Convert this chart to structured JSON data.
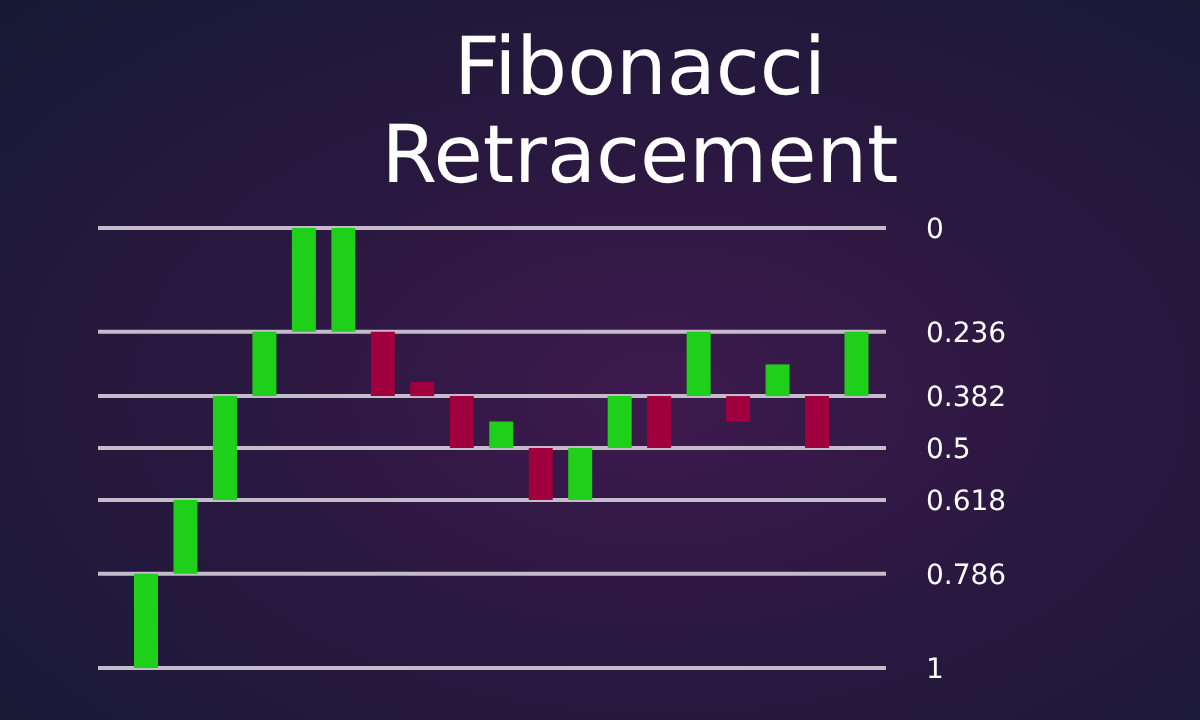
{
  "chart_data": {
    "type": "bar",
    "title": "Fibonacci Retracement",
    "categories": [
      null,
      null,
      null,
      null,
      null,
      null,
      null,
      null,
      null,
      null,
      null,
      null,
      null,
      null,
      null,
      null,
      null,
      null,
      null
    ],
    "base": [
      1,
      0.786,
      0.618,
      0.382,
      0.236,
      0.236,
      0.236,
      0.35,
      0.382,
      0.5,
      0.5,
      0.618,
      0.5,
      0.382,
      0.382,
      0.382,
      0.382,
      0.382,
      0.382
    ],
    "values": [
      -0.214,
      -0.168,
      -0.236,
      -0.146,
      -0.236,
      -0.236,
      0.146,
      0.032,
      0.118,
      -0.06,
      0.118,
      -0.118,
      -0.118,
      0.118,
      -0.146,
      0.058,
      -0.072,
      0.118,
      -0.146
    ],
    "colors": [
      "#1ed01a",
      "#1ed01a",
      "#1ed01a",
      "#1ed01a",
      "#1ed01a",
      "#1ed01a",
      "#a0003e",
      "#a0003e",
      "#a0003e",
      "#1ed01a",
      "#a0003e",
      "#1ed01a",
      "#1ed01a",
      "#a0003e",
      "#1ed01a",
      "#a0003e",
      "#1ed01a",
      "#a0003e",
      "#1ed01a"
    ],
    "ylim": [
      1,
      0
    ],
    "yticks": [
      0,
      0.236,
      0.382,
      0.5,
      0.618,
      0.786,
      1
    ],
    "grid": "y",
    "tick_labels": "y"
  }
}
